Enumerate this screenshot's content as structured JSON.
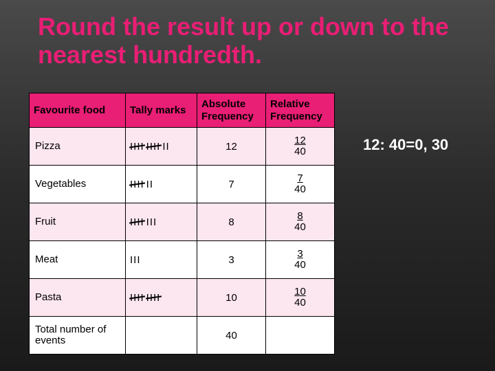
{
  "title": "Round the result up or down to the nearest hundredth.",
  "annotation": "12: 40=0, 30",
  "columns": {
    "c1": "Favourite food",
    "c2": "Tally marks",
    "c3": "Absolute Frequency",
    "c4": "Relative Frequency"
  },
  "rows": [
    {
      "label": "Pizza",
      "fives": 2,
      "ones": 2,
      "abs": "12",
      "num": "12",
      "den": "40"
    },
    {
      "label": "Vegetables",
      "fives": 1,
      "ones": 2,
      "abs": "7",
      "num": "7",
      "den": "40"
    },
    {
      "label": "Fruit",
      "fives": 1,
      "ones": 3,
      "abs": "8",
      "num": "8",
      "den": "40"
    },
    {
      "label": "Meat",
      "fives": 0,
      "ones": 3,
      "abs": "3",
      "num": "3",
      "den": "40"
    },
    {
      "label": "Pasta",
      "fives": 2,
      "ones": 0,
      "abs": "10",
      "num": "10",
      "den": "40"
    }
  ],
  "total": {
    "label": "Total number of events",
    "abs": "40"
  },
  "colors": {
    "title": "#e91e75",
    "header_bg": "#e91e75",
    "row_alt_bg": "#fce6ef",
    "bg_top": "#4a4a4a",
    "bg_bottom": "#1a1a1a",
    "annotation": "#ffffff"
  }
}
